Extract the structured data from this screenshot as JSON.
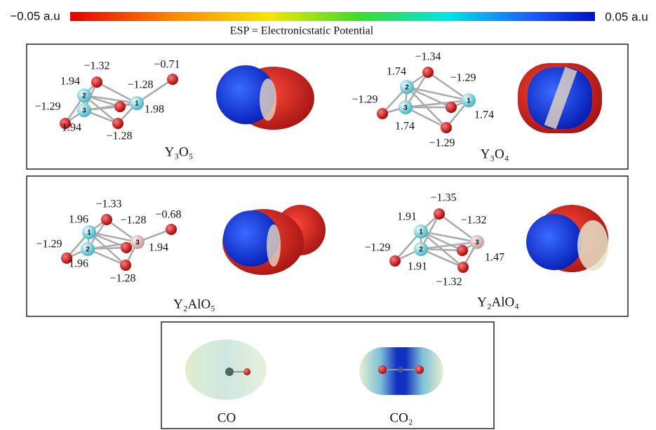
{
  "color_scale": {
    "min_label": "−0.05 a.u",
    "max_label": "0.05 a.u",
    "caption": "ESP = Electronicstatic Potential"
  },
  "panels": [
    {
      "molecules": [
        {
          "name": "Y₃O₅",
          "atoms": [
            "1",
            "2",
            "3"
          ],
          "labels": [
            "−1.32",
            "1.94",
            "−1.28",
            "−0.71",
            "−1.29",
            "1.98",
            "1.94",
            "−1.28"
          ]
        },
        {
          "name": "Y₃O₄",
          "atoms": [
            "1",
            "2",
            "3"
          ],
          "labels": [
            "−1.34",
            "1.74",
            "−1.29",
            "−1.29",
            "1.74",
            "1.74",
            "−1.29"
          ]
        }
      ]
    },
    {
      "molecules": [
        {
          "name": "Y₂AlO₅",
          "atoms": [
            "1",
            "2",
            "3"
          ],
          "labels": [
            "−1.33",
            "1.96",
            "−1.28",
            "−0.68",
            "−1.29",
            "1.94",
            "1.96",
            "−1.28"
          ]
        },
        {
          "name": "Y₂AlO₄",
          "atoms": [
            "1",
            "2",
            "3"
          ],
          "labels": [
            "−1.35",
            "1.91",
            "−1.32",
            "−1.29",
            "1.47",
            "1.91",
            "−1.32"
          ]
        }
      ]
    },
    {
      "molecules": [
        {
          "name": "CO"
        },
        {
          "name": "CO₂"
        }
      ]
    }
  ]
}
